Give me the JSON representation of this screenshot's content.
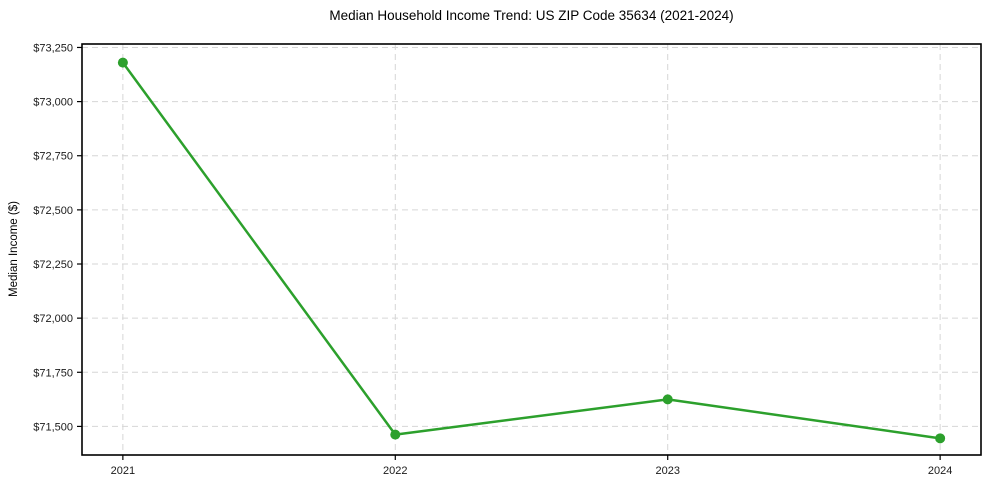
{
  "chart_data": {
    "type": "line",
    "title": "Median Household Income Trend: US ZIP Code 35634 (2021-2024)",
    "xlabel": "",
    "ylabel": "Median Income ($)",
    "x": [
      2021,
      2022,
      2023,
      2024
    ],
    "xtick_labels": [
      "2021",
      "2022",
      "2023",
      "2024"
    ],
    "values": [
      73180,
      71462,
      71625,
      71445
    ],
    "yticks": [
      71500,
      71750,
      72000,
      72250,
      72500,
      72750,
      73000,
      73250
    ],
    "ytick_labels": [
      "$71,500",
      "$71,750",
      "$72,000",
      "$72,250",
      "$72,500",
      "$72,750",
      "$73,000",
      "$73,250"
    ],
    "xlim": [
      2020.85,
      2024.15
    ],
    "ylim": [
      71368,
      73266
    ],
    "grid": true,
    "grid_style": "dashed",
    "legend_position": "none",
    "style": {
      "line_color": "#2ca02c",
      "marker": "circle",
      "marker_size": 10,
      "line_width": 2.5,
      "grid_color": "#d6d6d6",
      "spine_color": "#000000",
      "tick_label_color": "#1a1a1a",
      "background": "#ffffff"
    }
  }
}
